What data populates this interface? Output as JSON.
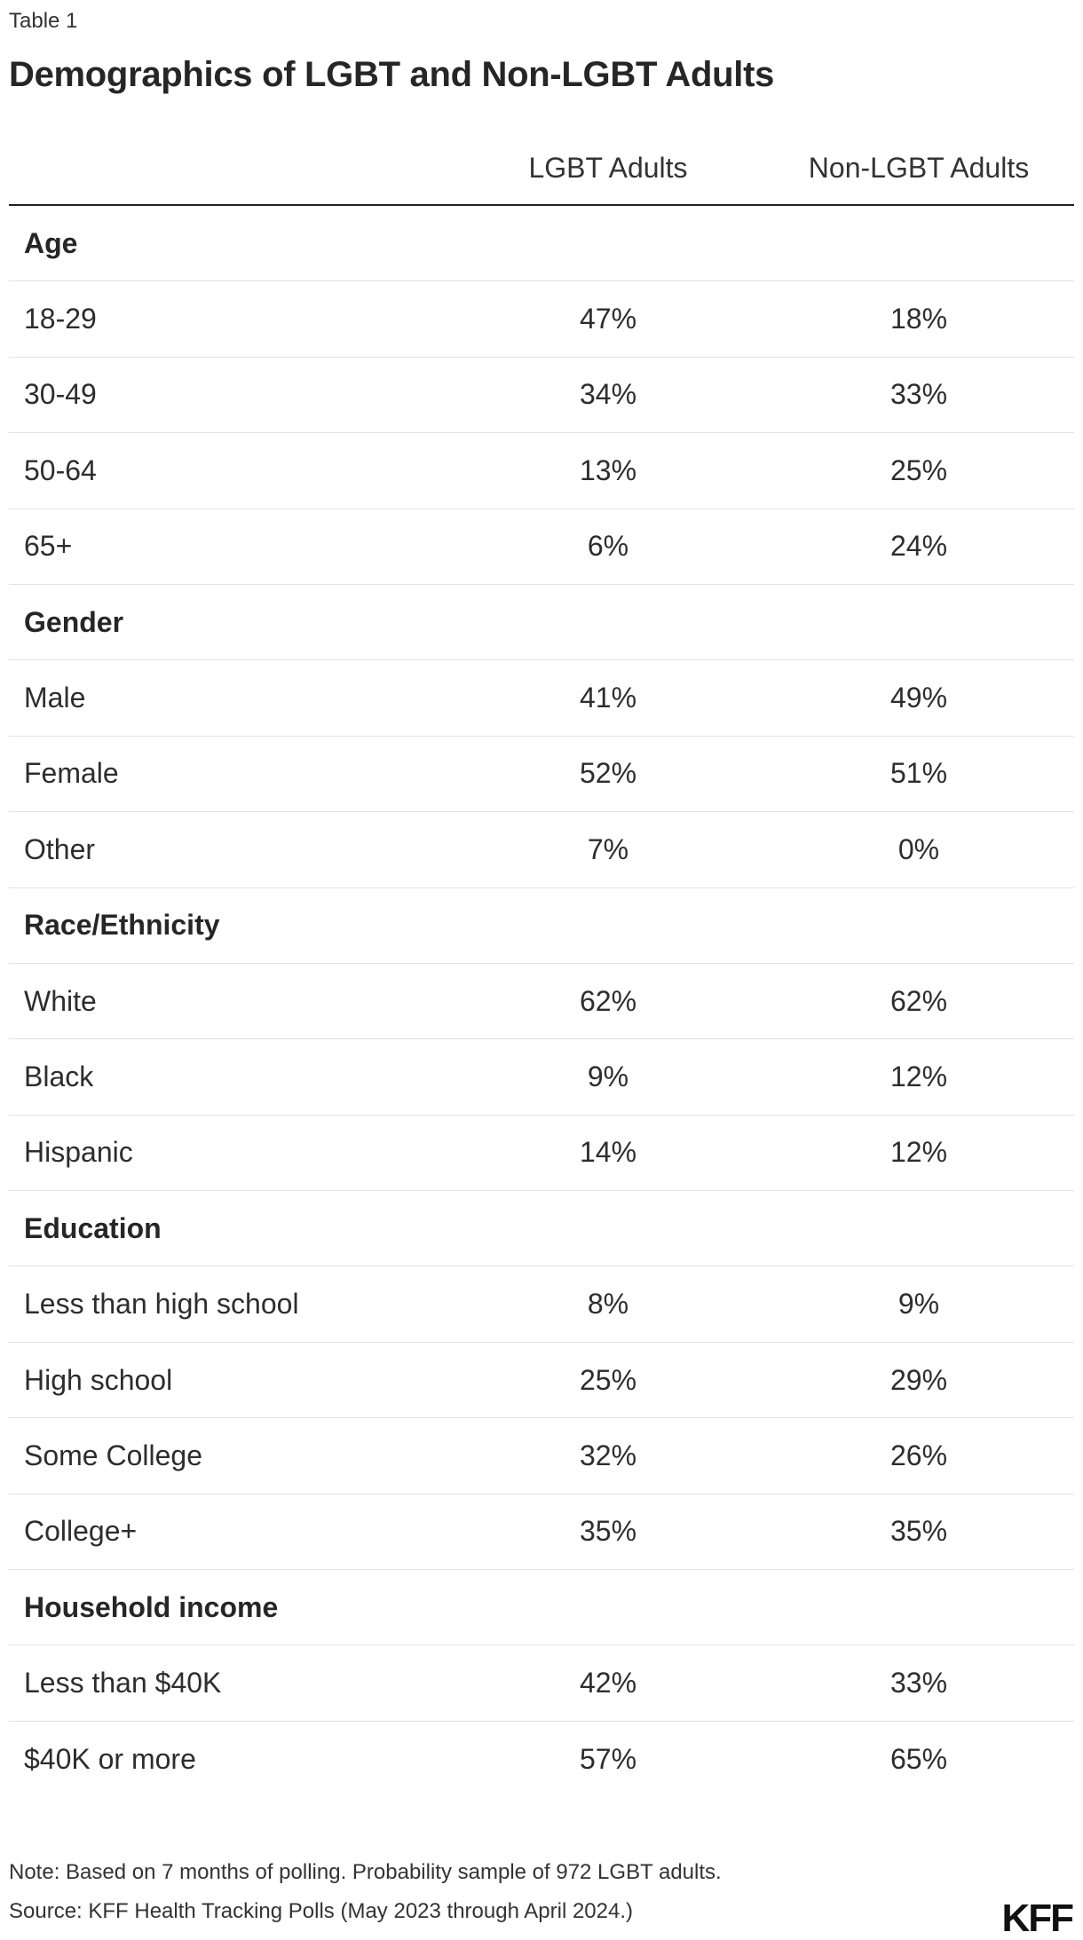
{
  "table_label": "Table 1",
  "title": "Demographics of LGBT and Non-LGBT Adults",
  "columns": [
    "",
    "LGBT Adults",
    "Non-LGBT Adults"
  ],
  "rows": [
    {
      "label": "Age",
      "lgbt": "",
      "non_lgbt": "",
      "group": true
    },
    {
      "label": "18-29",
      "lgbt": "47%",
      "non_lgbt": "18%"
    },
    {
      "label": "30-49",
      "lgbt": "34%",
      "non_lgbt": "33%"
    },
    {
      "label": "50-64",
      "lgbt": "13%",
      "non_lgbt": "25%"
    },
    {
      "label": "65+",
      "lgbt": "6%",
      "non_lgbt": "24%"
    },
    {
      "label": "Gender",
      "lgbt": "",
      "non_lgbt": "",
      "group": true
    },
    {
      "label": "Male",
      "lgbt": "41%",
      "non_lgbt": "49%"
    },
    {
      "label": "Female",
      "lgbt": "52%",
      "non_lgbt": "51%"
    },
    {
      "label": "Other",
      "lgbt": "7%",
      "non_lgbt": "0%"
    },
    {
      "label": "Race/Ethnicity",
      "lgbt": "",
      "non_lgbt": "",
      "group": true
    },
    {
      "label": "White",
      "lgbt": "62%",
      "non_lgbt": "62%"
    },
    {
      "label": "Black",
      "lgbt": "9%",
      "non_lgbt": "12%"
    },
    {
      "label": "Hispanic",
      "lgbt": "14%",
      "non_lgbt": "12%"
    },
    {
      "label": "Education",
      "lgbt": "",
      "non_lgbt": "",
      "group": true
    },
    {
      "label": "Less than high school",
      "lgbt": "8%",
      "non_lgbt": "9%"
    },
    {
      "label": "High school",
      "lgbt": "25%",
      "non_lgbt": "29%"
    },
    {
      "label": "Some College",
      "lgbt": "32%",
      "non_lgbt": "26%"
    },
    {
      "label": "College+",
      "lgbt": "35%",
      "non_lgbt": "35%"
    },
    {
      "label": "Household income",
      "lgbt": "",
      "non_lgbt": "",
      "group": true
    },
    {
      "label": "Less than $40K",
      "lgbt": "42%",
      "non_lgbt": "33%"
    },
    {
      "label": "$40K or more",
      "lgbt": "57%",
      "non_lgbt": "65%"
    }
  ],
  "footer": {
    "note": "Note: Based on 7 months of polling. Probability sample of 972 LGBT adults.",
    "source": "Source: KFF Health Tracking Polls (May 2023 through April 2024.)"
  },
  "logo": "KFF"
}
